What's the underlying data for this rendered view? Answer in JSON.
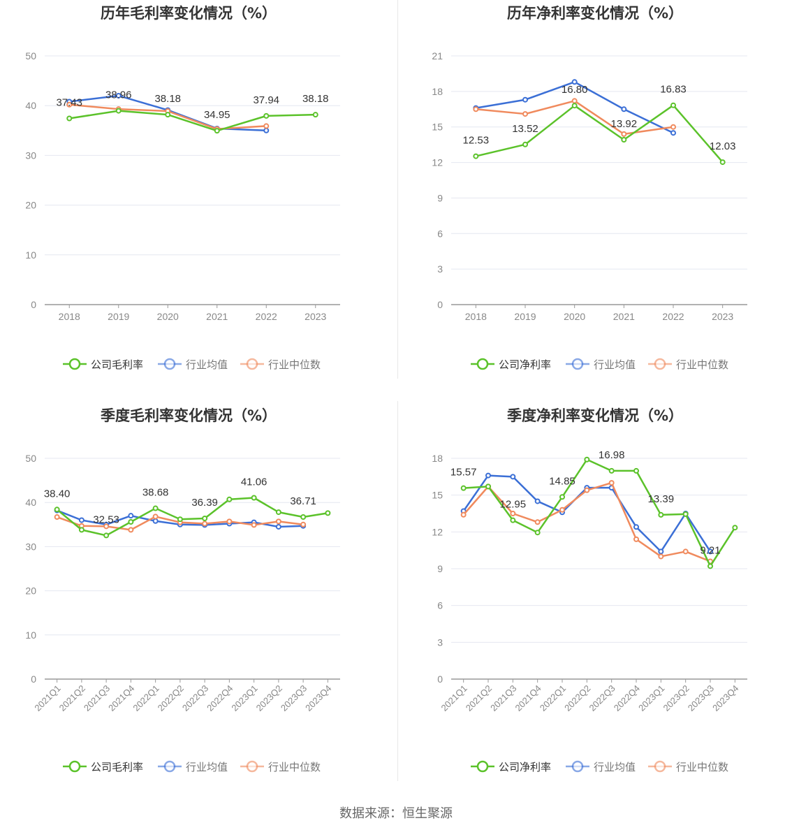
{
  "colors": {
    "company": "#5bc22a",
    "avg": "#3b6fd6",
    "median": "#f08a5d",
    "grid": "#e4e7f0",
    "axis": "#999999",
    "text": "#888888",
    "title": "#333333",
    "label": "#333333"
  },
  "legend_labels": {
    "gross": [
      "公司毛利率",
      "行业均值",
      "行业中位数"
    ],
    "net": [
      "公司净利率",
      "行业均值",
      "行业中位数"
    ]
  },
  "source_text": "数据来源：恒生聚源",
  "chart_data": [
    {
      "id": "annual-gross",
      "type": "line",
      "title": "历年毛利率变化情况（%）",
      "categories": [
        "2018",
        "2019",
        "2020",
        "2021",
        "2022",
        "2023"
      ],
      "ylim": [
        0,
        50
      ],
      "yticks": [
        0,
        10,
        20,
        30,
        40,
        50
      ],
      "series": [
        {
          "name": "公司毛利率",
          "values": [
            37.43,
            38.96,
            38.18,
            34.95,
            37.94,
            38.18
          ]
        },
        {
          "name": "行业均值",
          "values": [
            40.8,
            42.0,
            39.1,
            35.4,
            35.0,
            null
          ]
        },
        {
          "name": "行业中位数",
          "values": [
            40.2,
            39.3,
            38.9,
            35.3,
            35.9,
            null
          ]
        }
      ],
      "data_labels": [
        "37.43",
        "38.96",
        "38.18",
        "34.95",
        "37.94",
        "38.18"
      ]
    },
    {
      "id": "annual-net",
      "type": "line",
      "title": "历年净利率变化情况（%）",
      "categories": [
        "2018",
        "2019",
        "2020",
        "2021",
        "2022",
        "2023"
      ],
      "ylim": [
        0,
        21
      ],
      "yticks": [
        0,
        3,
        6,
        9,
        12,
        15,
        18,
        21
      ],
      "series": [
        {
          "name": "公司净利率",
          "values": [
            12.53,
            13.52,
            16.8,
            13.92,
            16.83,
            12.03
          ]
        },
        {
          "name": "行业均值",
          "values": [
            16.6,
            17.3,
            18.8,
            16.5,
            14.5,
            null
          ]
        },
        {
          "name": "行业中位数",
          "values": [
            16.5,
            16.1,
            17.2,
            14.4,
            15.0,
            null
          ]
        }
      ],
      "data_labels": [
        "12.53",
        "13.52",
        "16.80",
        "13.92",
        "16.83",
        "12.03"
      ]
    },
    {
      "id": "quarterly-gross",
      "type": "line",
      "title": "季度毛利率变化情况（%）",
      "categories": [
        "2021Q1",
        "2021Q2",
        "2021Q3",
        "2021Q4",
        "2022Q1",
        "2022Q2",
        "2022Q3",
        "2022Q4",
        "2023Q1",
        "2023Q2",
        "2023Q3",
        "2023Q4"
      ],
      "ylim": [
        0,
        50
      ],
      "yticks": [
        0,
        10,
        20,
        30,
        40,
        50
      ],
      "series": [
        {
          "name": "公司毛利率",
          "values": [
            38.4,
            33.8,
            32.53,
            35.6,
            38.68,
            36.2,
            36.39,
            40.7,
            41.06,
            37.8,
            36.71,
            37.6
          ]
        },
        {
          "name": "行业均值",
          "values": [
            38.2,
            36.0,
            35.0,
            37.0,
            35.8,
            35.0,
            34.9,
            35.2,
            35.5,
            34.5,
            34.7,
            null
          ]
        },
        {
          "name": "行业中位数",
          "values": [
            36.7,
            34.7,
            34.6,
            33.8,
            36.8,
            35.5,
            35.2,
            35.7,
            34.9,
            35.7,
            35.0,
            null
          ]
        }
      ],
      "data_labels": [
        "38.40",
        "",
        "32.53",
        "",
        "38.68",
        "",
        "36.39",
        "",
        "41.06",
        "",
        "36.71",
        ""
      ]
    },
    {
      "id": "quarterly-net",
      "type": "line",
      "title": "季度净利率变化情况（%）",
      "categories": [
        "2021Q1",
        "2021Q2",
        "2021Q3",
        "2021Q4",
        "2022Q1",
        "2022Q2",
        "2022Q3",
        "2022Q4",
        "2023Q1",
        "2023Q2",
        "2023Q3",
        "2023Q4"
      ],
      "ylim": [
        0,
        18
      ],
      "yticks": [
        0,
        3,
        6,
        9,
        12,
        15,
        18
      ],
      "series": [
        {
          "name": "公司净利率",
          "values": [
            15.57,
            15.7,
            12.95,
            11.95,
            14.85,
            17.9,
            16.98,
            16.98,
            13.39,
            13.45,
            9.21,
            12.35
          ]
        },
        {
          "name": "行业均值",
          "values": [
            13.7,
            16.6,
            16.5,
            14.5,
            13.6,
            15.6,
            15.6,
            12.4,
            10.4,
            13.5,
            10.4,
            null
          ]
        },
        {
          "name": "行业中位数",
          "values": [
            13.4,
            15.7,
            13.5,
            12.8,
            13.8,
            15.4,
            16.0,
            11.4,
            10.0,
            10.4,
            9.6,
            null
          ]
        }
      ],
      "data_labels": [
        "15.57",
        "",
        "12.95",
        "",
        "14.85",
        "",
        "16.98",
        "",
        "13.39",
        "",
        "9.21",
        ""
      ]
    }
  ]
}
